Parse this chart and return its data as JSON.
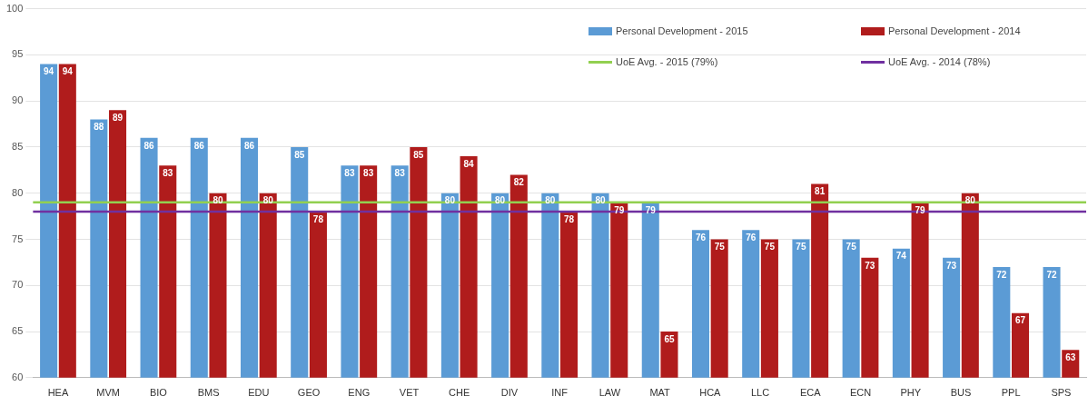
{
  "chart_data": {
    "type": "bar",
    "categories": [
      "HEA",
      "MVM",
      "BIO",
      "BMS",
      "EDU",
      "GEO",
      "ENG",
      "VET",
      "CHE",
      "DIV",
      "INF",
      "LAW",
      "MAT",
      "HCA",
      "LLC",
      "ECA",
      "ECN",
      "PHY",
      "BUS",
      "PPL",
      "SPS"
    ],
    "series": [
      {
        "name": "Personal Development - 2015",
        "color": "#5b9bd5",
        "values": [
          94,
          88,
          86,
          86,
          86,
          85,
          83,
          83,
          80,
          80,
          80,
          80,
          79,
          76,
          76,
          75,
          75,
          74,
          73,
          72,
          72
        ]
      },
      {
        "name": "Personal Development - 2014",
        "color": "#b01c1c",
        "values": [
          94,
          89,
          83,
          80,
          80,
          78,
          83,
          85,
          84,
          82,
          78,
          79,
          65,
          75,
          75,
          81,
          73,
          79,
          80,
          67,
          63
        ]
      }
    ],
    "ref_lines": [
      {
        "axis": "y",
        "value": 79,
        "label": "UoE Avg. - 2015 (79%)",
        "color": "#92d050"
      },
      {
        "axis": "y",
        "value": 78,
        "label": "UoE Avg. - 2014 (78%)",
        "color": "#7030a0"
      }
    ],
    "ylim": [
      60,
      100
    ],
    "yticks": [
      60,
      65,
      70,
      75,
      80,
      85,
      90,
      95,
      100
    ],
    "grid": "y",
    "legend": "top right",
    "data_labels": true
  }
}
